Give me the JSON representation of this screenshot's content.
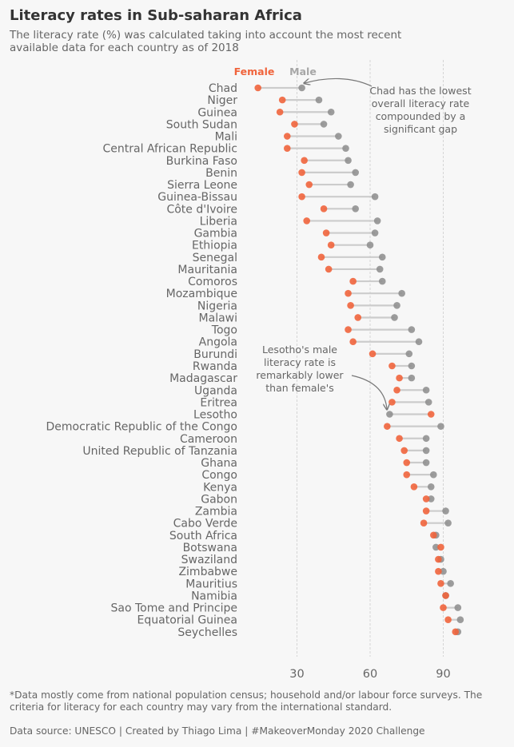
{
  "header": {
    "title": "Literacy rates in Sub-saharan Africa",
    "subtitle": "The literacy rate (%) was calculated taking into account the most recent available data for each country as of 2018"
  },
  "footer": {
    "footnote": "*Data mostly come from national population census; household and/or labour force surveys. The criteria for literacy for each country may vary from the international standard.",
    "source": "Data source: UNESCO | Created by Thiago Lima | #MakeoverMonday 2020 Challenge"
  },
  "annotations": {
    "chad": "Chad has the lowest overall literacy rate compounded by a significant gap",
    "lesotho": "Lesotho's male literacy rate is remarkably lower than female's"
  },
  "colors": {
    "female": "#f0643c",
    "male": "#8c8c8c",
    "connector": "#cccccc",
    "background": "#f7f7f7",
    "text": "#666666",
    "title": "#333333"
  },
  "chart_data": {
    "type": "dumbbell",
    "legend": [
      {
        "name": "Female",
        "color": "#f0643c"
      },
      {
        "name": "Male",
        "color": "#8c8c8c"
      }
    ],
    "legend_placement": "top",
    "xlim": [
      0,
      110
    ],
    "xticks": [
      30,
      60,
      90
    ],
    "grid": "vertical dashed",
    "categories": [
      "Chad",
      "Niger",
      "Guinea",
      "South Sudan",
      "Mali",
      "Central African Republic",
      "Burkina Faso",
      "Benin",
      "Sierra Leone",
      "Guinea-Bissau",
      "Côte d'Ivoire",
      "Liberia",
      "Gambia",
      "Ethiopia",
      "Senegal",
      "Mauritania",
      "Comoros",
      "Mozambique",
      "Nigeria",
      "Malawi",
      "Togo",
      "Angola",
      "Burundi",
      "Rwanda",
      "Madagascar",
      "Uganda",
      "Eritrea",
      "Lesotho",
      "Democratic Republic of the Congo",
      "Cameroon",
      "United Republic of Tanzania",
      "Ghana",
      "Congo",
      "Kenya",
      "Gabon",
      "Zambia",
      "Cabo Verde",
      "South Africa",
      "Botswana",
      "Swaziland",
      "Zimbabwe",
      "Mauritius",
      "Namibia",
      "Sao Tome and Principe",
      "Equatorial Guinea",
      "Seychelles"
    ],
    "series": [
      {
        "name": "Female",
        "values": [
          14,
          24,
          23,
          29,
          26,
          26,
          33,
          32,
          35,
          32,
          41,
          34,
          42,
          44,
          40,
          43,
          53,
          51,
          52,
          55,
          51,
          53,
          61,
          69,
          72,
          71,
          69,
          85,
          67,
          72,
          74,
          75,
          75,
          78,
          83,
          83,
          82,
          86,
          89,
          88,
          88,
          89,
          91,
          90,
          92,
          95
        ]
      },
      {
        "name": "Male",
        "values": [
          32,
          39,
          44,
          41,
          47,
          50,
          51,
          54,
          52,
          62,
          54,
          63,
          62,
          60,
          65,
          64,
          65,
          73,
          71,
          70,
          77,
          80,
          76,
          77,
          77,
          83,
          84,
          68,
          89,
          83,
          83,
          83,
          86,
          85,
          85,
          91,
          92,
          87,
          87,
          89,
          90,
          93,
          91,
          96,
          97,
          96
        ]
      }
    ]
  }
}
